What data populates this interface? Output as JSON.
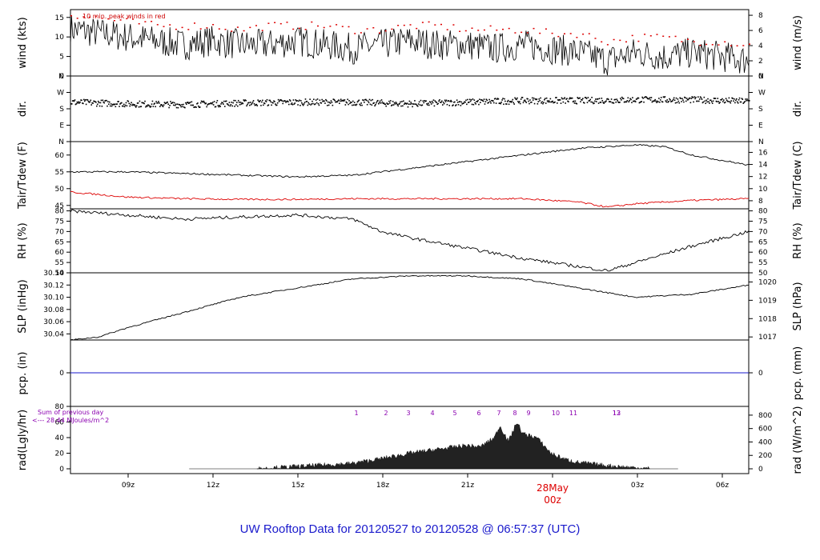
{
  "chart_data": [
    {
      "type": "line",
      "ylabel": "wind (kts)",
      "ylabel_right": "wind (m/s)",
      "annotation": "10 min. peak winds in red",
      "ylim": [
        0,
        17
      ],
      "yticks": [
        "0",
        "5",
        "10",
        "15"
      ],
      "yticks_right": [
        "0",
        "2",
        "4",
        "6",
        "8"
      ],
      "series": [
        {
          "name": "wind speed",
          "color": "#000000",
          "x": [
            0,
            1,
            2,
            3,
            4,
            5,
            6,
            7,
            8,
            9,
            10,
            11,
            12,
            13,
            14,
            15,
            16,
            17,
            18,
            19,
            20,
            21,
            22,
            23,
            24
          ],
          "values": [
            12,
            11,
            10,
            9,
            8,
            9,
            8,
            8,
            9,
            8,
            7,
            8,
            9,
            8,
            8,
            7,
            8,
            7,
            6,
            4,
            6,
            5,
            6,
            5,
            4
          ]
        },
        {
          "name": "10 min. peak",
          "color": "#dd0000",
          "x": [
            0,
            1,
            2,
            3,
            4,
            5,
            6,
            7,
            8,
            9,
            10,
            11,
            12,
            13,
            14,
            15,
            16,
            17,
            18,
            19,
            20,
            21,
            22,
            23,
            24
          ],
          "values": [
            16,
            15,
            14,
            13,
            13,
            13,
            12,
            13,
            13,
            13,
            12,
            12,
            13,
            13,
            12,
            12,
            12,
            11,
            11,
            9,
            10,
            10,
            9,
            9,
            8
          ]
        }
      ]
    },
    {
      "type": "scatter",
      "ylabel": "dir.",
      "ylabel_right": "dir.",
      "yticks": [
        "N",
        "E",
        "S",
        "W",
        "N"
      ],
      "yticks_right": [
        "N",
        "E",
        "S",
        "W",
        "N"
      ],
      "series": [
        {
          "name": "wind direction",
          "color": "#000000",
          "x": [
            0,
            2,
            4,
            6,
            8,
            10,
            12,
            14,
            16,
            18,
            20,
            22,
            24
          ],
          "values": [
            225,
            215,
            210,
            220,
            225,
            225,
            215,
            225,
            235,
            235,
            240,
            240,
            230
          ]
        }
      ]
    },
    {
      "type": "line",
      "ylabel": "Tair/Tdew (F)",
      "ylabel_right": "Tair/Tdew (C)",
      "ylim": [
        44,
        64
      ],
      "yticks": [
        "45",
        "50",
        "55",
        "60"
      ],
      "yticks_right": [
        "8",
        "10",
        "12",
        "14",
        "16"
      ],
      "series": [
        {
          "name": "Tair",
          "color": "#000000",
          "x": [
            0,
            2,
            4,
            6,
            8,
            10,
            12,
            14,
            16,
            18,
            20,
            21,
            22,
            24
          ],
          "values": [
            55,
            55,
            54.5,
            54,
            53.5,
            54,
            56,
            58,
            60,
            62,
            63,
            62.5,
            60,
            57
          ]
        },
        {
          "name": "Tdew",
          "color": "#dd0000",
          "x": [
            0,
            2,
            4,
            6,
            8,
            10,
            12,
            14,
            16,
            18,
            19,
            20,
            22,
            24
          ],
          "values": [
            49,
            47.5,
            47,
            46.8,
            46.8,
            47,
            47,
            47,
            47,
            46,
            44.5,
            45.5,
            46.5,
            47
          ]
        }
      ]
    },
    {
      "type": "line",
      "ylabel": "RH (%)",
      "ylabel_right": "RH (%)",
      "ylim": [
        50,
        81
      ],
      "yticks": [
        "50",
        "55",
        "60",
        "65",
        "70",
        "75",
        "80"
      ],
      "yticks_right": [
        "50",
        "55",
        "60",
        "65",
        "70",
        "75",
        "80"
      ],
      "series": [
        {
          "name": "RH",
          "color": "#000000",
          "x": [
            0,
            2,
            4,
            6,
            8,
            10,
            11,
            12,
            14,
            16,
            18,
            19,
            20,
            22,
            24
          ],
          "values": [
            80,
            78,
            76,
            77,
            78,
            76,
            70,
            67,
            62,
            57,
            53,
            51,
            55,
            63,
            70
          ]
        }
      ]
    },
    {
      "type": "line",
      "ylabel": "SLP (inHg)",
      "ylabel_right": "SLP (hPa)",
      "ylim": [
        30.03,
        30.14
      ],
      "yticks": [
        "30.04",
        "30.06",
        "30.08",
        "30.10",
        "30.12",
        "30.14"
      ],
      "yticks_right": [
        "1017",
        "1018",
        "1019",
        "1020"
      ],
      "series": [
        {
          "name": "SLP",
          "color": "#000000",
          "x": [
            0,
            1,
            2,
            4,
            6,
            8,
            10,
            12,
            14,
            16,
            18,
            20,
            22,
            24
          ],
          "values": [
            30.03,
            30.035,
            30.05,
            30.075,
            30.1,
            30.115,
            30.13,
            30.135,
            30.135,
            30.13,
            30.115,
            30.1,
            30.105,
            30.12
          ]
        }
      ]
    },
    {
      "type": "line",
      "ylabel": "pcp. (in)",
      "ylabel_right": "pcp. (mm)",
      "yticks": [
        "0"
      ],
      "yticks_right": [
        "0"
      ],
      "series": [
        {
          "name": "pcp",
          "color": "#1a1acc",
          "x": [
            0,
            24
          ],
          "values": [
            0,
            0
          ]
        }
      ]
    },
    {
      "type": "area",
      "ylabel": "rad(Lgly/hr)",
      "ylabel_right": "rad (W/m^2)",
      "annotation_lines": [
        "Sum of previous day",
        "<--- 28.44 MJoules/m^2"
      ],
      "ylim": [
        0,
        80
      ],
      "yticks": [
        "0",
        "20",
        "40",
        "60",
        "80"
      ],
      "yticks_right": [
        "0",
        "200",
        "400",
        "600",
        "800"
      ],
      "sun_numbers": [
        "1",
        "2",
        "3",
        "4",
        "5",
        "6",
        "7",
        "8",
        "9",
        "10",
        "11",
        "12",
        "13"
      ],
      "series": [
        {
          "name": "radiation",
          "color": "#222222",
          "x": [
            5,
            6,
            7,
            8,
            9,
            10,
            11,
            11.5,
            12,
            12.5,
            13,
            14,
            15,
            15.3,
            15.6,
            16,
            16.3,
            17,
            18,
            18.5,
            19,
            20
          ],
          "values": [
            0,
            2,
            5,
            10,
            15,
            20,
            25,
            30,
            28,
            35,
            33,
            45,
            50,
            65,
            70,
            50,
            45,
            40,
            20,
            10,
            5,
            0
          ]
        }
      ]
    }
  ],
  "xaxis": {
    "ticks": [
      "09z",
      "12z",
      "15z",
      "18z",
      "21z",
      "00z",
      "03z",
      "06z"
    ],
    "date_label": "28May",
    "date_hour": "00z"
  },
  "footer": "UW Rooftop Data for 20120527  to  20120528 @ 06:57:37  (UTC)"
}
